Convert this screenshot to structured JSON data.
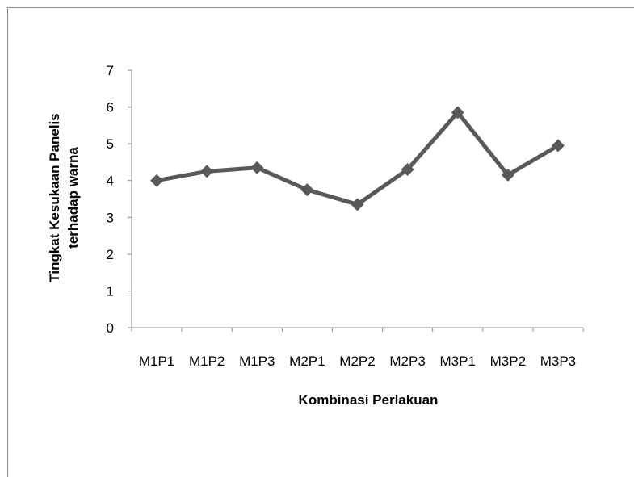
{
  "chart_data": {
    "type": "line",
    "title": "",
    "xlabel": "Kombinasi Perlakuan",
    "ylabel_lines": [
      "Tingkat Kesukaan Panelis",
      "terhadap  warna"
    ],
    "categories": [
      "M1P1",
      "M1P2",
      "M1P3",
      "M2P1",
      "M2P2",
      "M2P3",
      "M3P1",
      "M3P2",
      "M3P3"
    ],
    "series": [
      {
        "values": [
          4.0,
          4.25,
          4.35,
          3.75,
          3.35,
          4.3,
          5.85,
          4.15,
          4.95
        ],
        "color": "#595959",
        "marker": "diamond"
      }
    ],
    "ylim": [
      0,
      7
    ],
    "yticks": [
      0,
      1,
      2,
      3,
      4,
      5,
      6,
      7
    ],
    "grid": false,
    "legend": false
  }
}
